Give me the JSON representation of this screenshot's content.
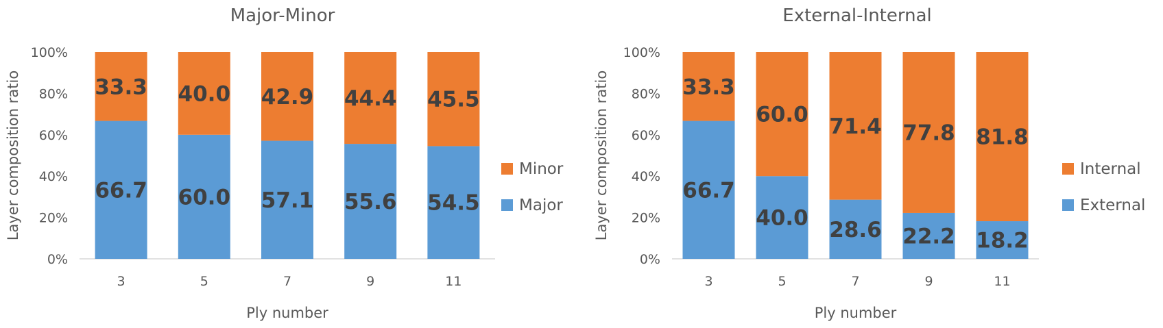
{
  "chart_data": [
    {
      "type": "bar",
      "stacked": "percent",
      "title": "Major-Minor",
      "xlabel": "Ply number",
      "ylabel": "Layer composition ratio",
      "ylim": [
        0,
        100
      ],
      "yticks": [
        "0%",
        "20%",
        "40%",
        "60%",
        "80%",
        "100%"
      ],
      "grid": false,
      "legend_position": "right",
      "categories": [
        "3",
        "5",
        "7",
        "9",
        "11"
      ],
      "series": [
        {
          "name": "Major",
          "color": "#5B9BD5",
          "values": [
            66.7,
            60.0,
            57.1,
            55.6,
            54.5
          ],
          "labels": [
            "66.7",
            "60.0",
            "57.1",
            "55.6",
            "54.5"
          ]
        },
        {
          "name": "Minor",
          "color": "#ED7D31",
          "values": [
            33.3,
            40.0,
            42.9,
            44.4,
            45.5
          ],
          "labels": [
            "33.3",
            "40.0",
            "42.9",
            "44.4",
            "45.5"
          ]
        }
      ]
    },
    {
      "type": "bar",
      "stacked": "percent",
      "title": "External-Internal",
      "xlabel": "Ply number",
      "ylabel": "Layer composition ratio",
      "ylim": [
        0,
        100
      ],
      "yticks": [
        "0%",
        "20%",
        "40%",
        "60%",
        "80%",
        "100%"
      ],
      "grid": false,
      "legend_position": "right",
      "categories": [
        "3",
        "5",
        "7",
        "9",
        "11"
      ],
      "series": [
        {
          "name": "External",
          "color": "#5B9BD5",
          "values": [
            66.7,
            40.0,
            28.6,
            22.2,
            18.2
          ],
          "labels": [
            "66.7",
            "40.0",
            "28.6",
            "22.2",
            "18.2"
          ]
        },
        {
          "name": "Internal",
          "color": "#ED7D31",
          "values": [
            33.3,
            60.0,
            71.4,
            77.8,
            81.8
          ],
          "labels": [
            "33.3",
            "60.0",
            "71.4",
            "77.8",
            "81.8"
          ]
        }
      ]
    }
  ]
}
